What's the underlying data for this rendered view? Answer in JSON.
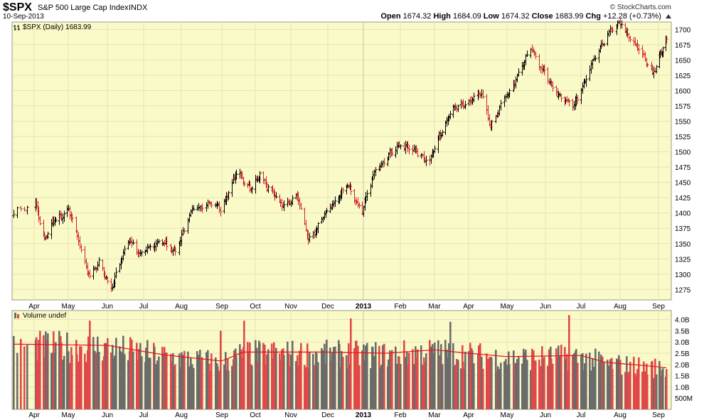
{
  "header": {
    "symbol": "$SPX",
    "name": "S&P 500 Large Cap Index",
    "exchange": "INDX",
    "date": "10-Sep-2013",
    "brand": "© StockCharts.com",
    "ohlc": {
      "open_label": "Open",
      "open": "1674.32",
      "high_label": "High",
      "high": "1684.09",
      "low_label": "Low",
      "low": "1674.32",
      "close_label": "Close",
      "close": "1683.99",
      "chg_label": "Chg",
      "chg": "+12.28 (+0.73%)"
    }
  },
  "colors": {
    "panel_bg": "#fafac8",
    "grid": "#e6e2b4",
    "up": "#000000",
    "down": "#d0242b",
    "vol_up": "#6b6b6b",
    "vol_down": "#e0484c",
    "vol_ma": "#e8101a"
  },
  "chart_data": [
    {
      "type": "ohlc",
      "legend": "$SPX (Daily) 1683.99",
      "y_ticks": [
        1275,
        1300,
        1325,
        1350,
        1375,
        1400,
        1425,
        1450,
        1475,
        1500,
        1525,
        1550,
        1575,
        1600,
        1625,
        1650,
        1675,
        1700
      ],
      "ylim": [
        1258,
        1712
      ],
      "x_months": [
        "Apr",
        "May",
        "Jun",
        "Jul",
        "Aug",
        "Sep",
        "Oct",
        "Nov",
        "Dec",
        "2013",
        "Feb",
        "Mar",
        "Apr",
        "May",
        "Jun",
        "Jul",
        "Aug",
        "Sep"
      ],
      "close_anchors": [
        [
          "2012-03-26",
          1400
        ],
        [
          "2012-04-02",
          1415
        ],
        [
          "2012-04-10",
          1358
        ],
        [
          "2012-04-18",
          1385
        ],
        [
          "2012-05-01",
          1405
        ],
        [
          "2012-05-18",
          1295
        ],
        [
          "2012-05-25",
          1318
        ],
        [
          "2012-06-04",
          1278
        ],
        [
          "2012-06-19",
          1358
        ],
        [
          "2012-06-28",
          1330
        ],
        [
          "2012-07-13",
          1355
        ],
        [
          "2012-07-26",
          1337
        ],
        [
          "2012-08-10",
          1405
        ],
        [
          "2012-08-20",
          1418
        ],
        [
          "2012-08-31",
          1406
        ],
        [
          "2012-09-14",
          1465
        ],
        [
          "2012-09-28",
          1440
        ],
        [
          "2012-10-05",
          1462
        ],
        [
          "2012-10-24",
          1410
        ],
        [
          "2012-11-06",
          1428
        ],
        [
          "2012-11-15",
          1355
        ],
        [
          "2012-12-03",
          1410
        ],
        [
          "2012-12-18",
          1445
        ],
        [
          "2012-12-31",
          1402
        ],
        [
          "2013-01-11",
          1472
        ],
        [
          "2013-02-01",
          1513
        ],
        [
          "2013-02-25",
          1487
        ],
        [
          "2013-03-14",
          1563
        ],
        [
          "2013-04-11",
          1593
        ],
        [
          "2013-04-18",
          1542
        ],
        [
          "2013-05-21",
          1669
        ],
        [
          "2013-06-05",
          1608
        ],
        [
          "2013-06-24",
          1573
        ],
        [
          "2013-07-22",
          1696
        ],
        [
          "2013-08-02",
          1709
        ],
        [
          "2013-08-27",
          1630
        ],
        [
          "2013-09-10",
          1684
        ]
      ]
    },
    {
      "type": "bar",
      "legend": "Volume undef",
      "y_ticks": [
        "4.0B",
        "3.5B",
        "3.0B",
        "2.5B",
        "2.0B",
        "1.5B",
        "1.0B",
        "500M"
      ],
      "y_tick_values": [
        4.0,
        3.5,
        3.0,
        2.5,
        2.0,
        1.5,
        1.0,
        0.5
      ],
      "ylim": [
        0,
        4.4
      ],
      "unit": "billions of shares",
      "moving_average_anchors": [
        [
          "2012-03-26",
          2.9
        ],
        [
          "2012-06-01",
          2.85
        ],
        [
          "2012-07-15",
          2.45
        ],
        [
          "2012-09-01",
          2.15
        ],
        [
          "2012-09-20",
          2.55
        ],
        [
          "2012-12-01",
          2.55
        ],
        [
          "2013-01-20",
          2.5
        ],
        [
          "2013-03-01",
          2.65
        ],
        [
          "2013-05-01",
          2.35
        ],
        [
          "2013-07-01",
          2.4
        ],
        [
          "2013-07-20",
          2.1
        ],
        [
          "2013-09-10",
          1.85
        ]
      ],
      "spikes": [
        [
          "2012-05-18",
          3.95
        ],
        [
          "2012-08-31",
          3.5
        ],
        [
          "2012-09-21",
          3.95
        ],
        [
          "2012-12-21",
          4.05
        ],
        [
          "2013-03-15",
          3.9
        ],
        [
          "2013-06-21",
          4.2
        ]
      ]
    }
  ]
}
